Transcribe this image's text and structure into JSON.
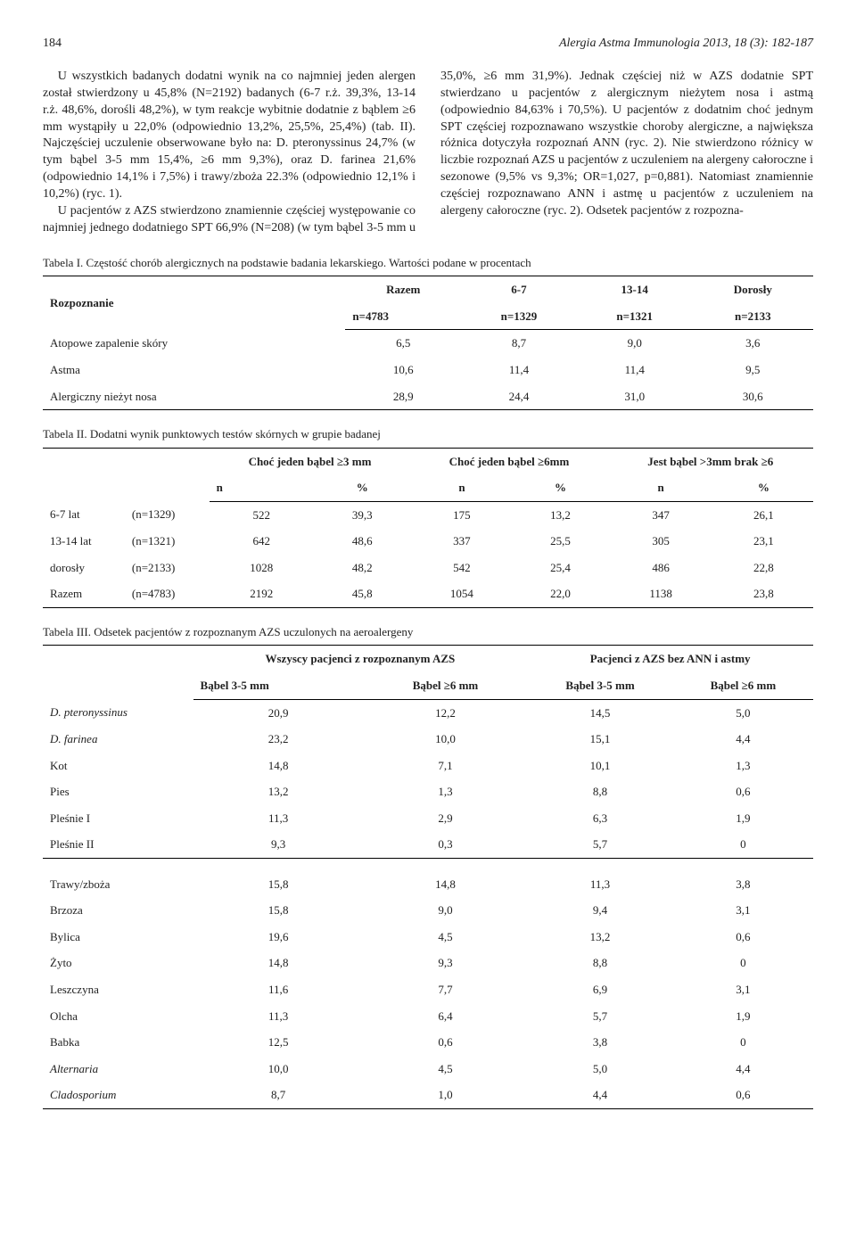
{
  "header": {
    "page": "184",
    "journal": "Alergia Astma Immunologia 2013, 18 (3): 182-187"
  },
  "body": {
    "p1": "U wszystkich badanych dodatni wynik na co najmniej jeden alergen został stwierdzony u 45,8% (N=2192) badanych (6-7 r.ż. 39,3%, 13-14 r.ż. 48,6%, dorośli 48,2%), w tym reakcje wybitnie dodatnie z bąblem ≥6 mm wystąpiły u 22,0% (odpowiednio 13,2%, 25,5%, 25,4%) (tab. II). Najczęściej uczulenie obserwowane było na: D. pteronyssinus 24,7% (w tym bąbel 3-5 mm 15,4%, ≥6 mm 9,3%), oraz D. farinea 21,6% (odpowiednio 14,1% i 7,5%) i trawy/zboża 22.3% (odpowiednio 12,1% i 10,2%) (ryc. 1).",
    "p2": "U pacjentów z AZS stwierdzono znamiennie częściej występowanie co najmniej jednego dodatniego SPT 66,9% (N=208) (w tym bąbel 3-5 mm u 35,0%, ≥6 mm 31,9%). Jednak częściej niż w AZS dodatnie SPT stwierdzano u pacjentów z alergicznym nieżytem nosa i astmą (odpowiednio 84,63% i 70,5%). U pacjentów z dodatnim choć jednym SPT częściej rozpoznawano wszystkie choroby alergiczne, a największa różnica dotyczyła rozpoznań ANN (ryc. 2). Nie stwierdzono różnicy w liczbie rozpoznań AZS u pacjentów z uczuleniem na alergeny całoroczne i sezonowe (9,5% vs 9,3%; OR=1,027, p=0,881). Natomiast znamiennie częściej rozpoznawano ANN i astmę u pacjentów z uczuleniem na alergeny całoroczne (ryc. 2). Odsetek pacjentów z rozpozna-"
  },
  "table1": {
    "caption": "Tabela I. Częstość chorób alergicznych na podstawie badania lekarskiego. Wartości podane w procentach",
    "head": {
      "rowLabel": "Rozpoznanie",
      "groups": [
        "Razem",
        "6-7",
        "13-14",
        "Dorosły"
      ],
      "ns": [
        "n=4783",
        "n=1329",
        "n=1321",
        "n=2133"
      ]
    },
    "rows": [
      {
        "label": "Atopowe zapalenie skóry",
        "v": [
          "6,5",
          "8,7",
          "9,0",
          "3,6"
        ]
      },
      {
        "label": "Astma",
        "v": [
          "10,6",
          "11,4",
          "11,4",
          "9,5"
        ]
      },
      {
        "label": "Alergiczny nieżyt nosa",
        "v": [
          "28,9",
          "24,4",
          "31,0",
          "30,6"
        ]
      }
    ]
  },
  "table2": {
    "caption": "Tabela II. Dodatni wynik punktowych testów skórnych w grupie badanej",
    "head": {
      "groups": [
        "Choć jeden bąbel ≥3 mm",
        "Choć jeden bąbel ≥6mm",
        "Jest bąbel >3mm brak ≥6"
      ],
      "sub": [
        "n",
        "%",
        "n",
        "%",
        "n",
        "%"
      ]
    },
    "rows": [
      {
        "age": "6-7 lat",
        "n": "(n=1329)",
        "v": [
          "522",
          "39,3",
          "175",
          "13,2",
          "347",
          "26,1"
        ]
      },
      {
        "age": "13-14 lat",
        "n": "(n=1321)",
        "v": [
          "642",
          "48,6",
          "337",
          "25,5",
          "305",
          "23,1"
        ]
      },
      {
        "age": "dorosły",
        "n": "(n=2133)",
        "v": [
          "1028",
          "48,2",
          "542",
          "25,4",
          "486",
          "22,8"
        ]
      },
      {
        "age": "Razem",
        "n": "(n=4783)",
        "v": [
          "2192",
          "45,8",
          "1054",
          "22,0",
          "1138",
          "23,8"
        ]
      }
    ]
  },
  "table3": {
    "caption": "Tabela III. Odsetek pacjentów z rozpoznanym AZS uczulonych na aeroalergeny",
    "head": {
      "groups": [
        "Wszyscy pacjenci z rozpoznanym AZS",
        "Pacjenci z AZS bez ANN i astmy"
      ],
      "sub": [
        "Bąbel 3-5 mm",
        "Bąbel ≥6 mm",
        "Bąbel 3-5 mm",
        "Bąbel ≥6 mm"
      ]
    },
    "rows1": [
      {
        "label": "D. pteronyssinus",
        "italic": true,
        "v": [
          "20,9",
          "12,2",
          "14,5",
          "5,0"
        ]
      },
      {
        "label": "D. farinea",
        "italic": true,
        "v": [
          "23,2",
          "10,0",
          "15,1",
          "4,4"
        ]
      },
      {
        "label": "Kot",
        "italic": false,
        "v": [
          "14,8",
          "7,1",
          "10,1",
          "1,3"
        ]
      },
      {
        "label": "Pies",
        "italic": false,
        "v": [
          "13,2",
          "1,3",
          "8,8",
          "0,6"
        ]
      },
      {
        "label": "Pleśnie I",
        "italic": false,
        "v": [
          "11,3",
          "2,9",
          "6,3",
          "1,9"
        ]
      },
      {
        "label": "Pleśnie II",
        "italic": false,
        "v": [
          "9,3",
          "0,3",
          "5,7",
          "0"
        ]
      }
    ],
    "rows2": [
      {
        "label": "Trawy/zboża",
        "italic": false,
        "v": [
          "15,8",
          "14,8",
          "11,3",
          "3,8"
        ]
      },
      {
        "label": "Brzoza",
        "italic": false,
        "v": [
          "15,8",
          "9,0",
          "9,4",
          "3,1"
        ]
      },
      {
        "label": "Bylica",
        "italic": false,
        "v": [
          "19,6",
          "4,5",
          "13,2",
          "0,6"
        ]
      },
      {
        "label": "Żyto",
        "italic": false,
        "v": [
          "14,8",
          "9,3",
          "8,8",
          "0"
        ]
      },
      {
        "label": "Leszczyna",
        "italic": false,
        "v": [
          "11,6",
          "7,7",
          "6,9",
          "3,1"
        ]
      },
      {
        "label": "Olcha",
        "italic": false,
        "v": [
          "11,3",
          "6,4",
          "5,7",
          "1,9"
        ]
      },
      {
        "label": "Babka",
        "italic": false,
        "v": [
          "12,5",
          "0,6",
          "3,8",
          "0"
        ]
      },
      {
        "label": "Alternaria",
        "italic": true,
        "v": [
          "10,0",
          "4,5",
          "5,0",
          "4,4"
        ]
      },
      {
        "label": "Cladosporium",
        "italic": true,
        "v": [
          "8,7",
          "1,0",
          "4,4",
          "0,6"
        ]
      }
    ]
  }
}
